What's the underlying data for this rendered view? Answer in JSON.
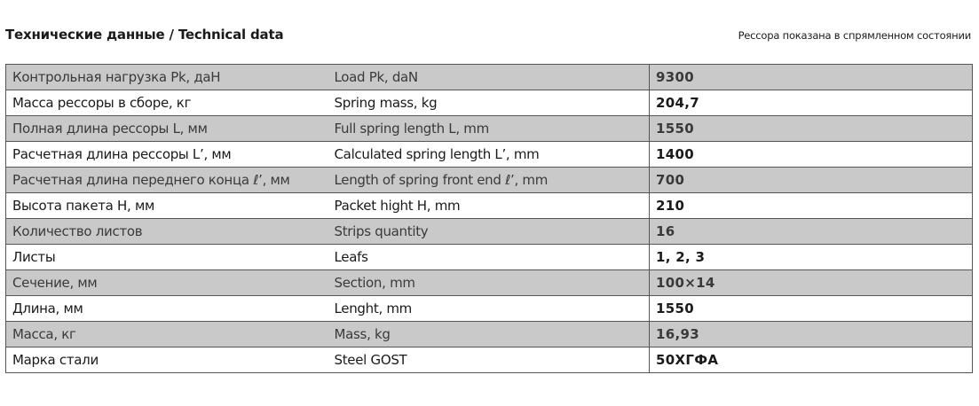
{
  "header": {
    "title": "Технические данные / Technical data",
    "note": "Рессора показана в спрямленном состоянии"
  },
  "rows": [
    {
      "ru": "Контрольная нагрузка Pk, даН",
      "en": "Load Pk, daN",
      "value": "9300"
    },
    {
      "ru": "Масса рессоры в сборе, кг",
      "en": "Spring mass, kg",
      "value": "204,7"
    },
    {
      "ru": "Полная длина рессоры L, мм",
      "en": "Full spring length L, mm",
      "value": "1550"
    },
    {
      "ru": "Расчетная длина рессоры L’, мм",
      "en": "Calculated spring length L’, mm",
      "value": "1400"
    },
    {
      "ru": "Расчетная длина переднего конца ℓ’, мм",
      "en": "Length of spring front end ℓ’, mm",
      "value": "700"
    },
    {
      "ru": "Высота пакета H, мм",
      "en": "Packet hight H, mm",
      "value": "210"
    },
    {
      "ru": "Количество листов",
      "en": "Strips quantity",
      "value": "16"
    },
    {
      "ru": "Листы",
      "en": "Leafs",
      "value": "1, 2, 3"
    },
    {
      "ru": "Сечение, мм",
      "en": "Section, mm",
      "value": "100×14"
    },
    {
      "ru": "Длина, мм",
      "en": "Lenght, mm",
      "value": "1550"
    },
    {
      "ru": "Масса, кг",
      "en": "Mass, kg",
      "value": "16,93"
    },
    {
      "ru": "Марка стали",
      "en": "Steel GOST",
      "value": "50ХГФА"
    }
  ],
  "colors": {
    "shaded_row": "#c9c9c9",
    "plain_row": "#ffffff",
    "border": "#555555"
  }
}
